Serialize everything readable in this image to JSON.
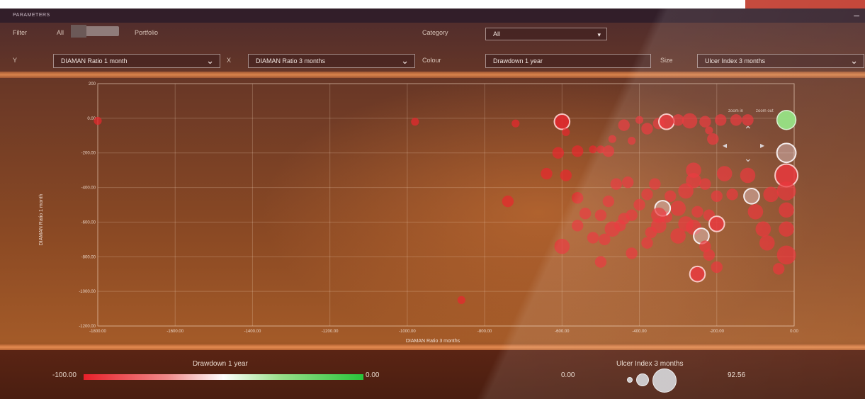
{
  "colors": {
    "accent_red": "#c0392b",
    "bubble_red": "#e8282e",
    "bubble_green": "#8ee07a",
    "bubble_white": "#e8dede",
    "grad_low": "#e8202a",
    "grad_high": "#28c43a"
  },
  "panel": {
    "title": "PARAMETERS",
    "minimize_icon": "minimize-icon"
  },
  "filter": {
    "label": "Filter",
    "option_left": "All",
    "option_right": "Portfolio"
  },
  "category": {
    "label": "Category",
    "value": "All"
  },
  "axes_selectors": {
    "y_label": "Y",
    "y_value": "DIAMAN Ratio 1 month",
    "x_label": "X",
    "x_value": "DIAMAN Ratio 3 months",
    "colour_label": "Colour",
    "colour_value": "Drawdown 1 year",
    "size_label": "Size",
    "size_value": "Ulcer Index 3 months"
  },
  "zoom": {
    "zoom_in": "zoom in",
    "zoom_out": "zoom out"
  },
  "legend": {
    "colour_title": "Drawdown 1 year",
    "colour_min": "-100.00",
    "colour_max": "0.00",
    "size_title": "Ulcer Index 3 months",
    "size_min": "0.00",
    "size_max": "92.56"
  },
  "chart_data": {
    "type": "scatter",
    "xlabel": "DIAMAN Ratio 3 months",
    "ylabel": "DIAMAN Ratio 1 month",
    "xlim": [
      -1800,
      0
    ],
    "ylim": [
      -1200,
      200
    ],
    "x_ticks": [
      "-1800.00",
      "-1600.00",
      "-1400.00",
      "-1200.00",
      "-1000.00",
      "-800.00",
      "-600.00",
      "-400.00",
      "-200.00",
      "0.00"
    ],
    "y_ticks": [
      "200",
      "0.00",
      "-200.00",
      "-400.00",
      "-600.00",
      "-800.00",
      "-1000.00",
      "-1200.00"
    ],
    "grid": true,
    "points": [
      {
        "x": -1800,
        "y": -15,
        "size": 1,
        "color": "red"
      },
      {
        "x": -980,
        "y": -20,
        "size": 1,
        "color": "red"
      },
      {
        "x": -860,
        "y": -1050,
        "size": 1,
        "color": "red"
      },
      {
        "x": -720,
        "y": -30,
        "size": 1,
        "color": "red"
      },
      {
        "x": -740,
        "y": -480,
        "size": 2,
        "color": "red"
      },
      {
        "x": -600,
        "y": -20,
        "size": 3,
        "color": "red-ring"
      },
      {
        "x": -590,
        "y": -80,
        "size": 1,
        "color": "red"
      },
      {
        "x": -610,
        "y": -200,
        "size": 2,
        "color": "red"
      },
      {
        "x": -640,
        "y": -320,
        "size": 2,
        "color": "red"
      },
      {
        "x": -560,
        "y": -190,
        "size": 2,
        "color": "red"
      },
      {
        "x": -520,
        "y": -180,
        "size": 1,
        "color": "red"
      },
      {
        "x": -600,
        "y": -740,
        "size": 3,
        "color": "red"
      },
      {
        "x": -590,
        "y": -330,
        "size": 2,
        "color": "red"
      },
      {
        "x": -500,
        "y": -180,
        "size": 1,
        "color": "red"
      },
      {
        "x": -470,
        "y": -120,
        "size": 1,
        "color": "red"
      },
      {
        "x": -480,
        "y": -190,
        "size": 2,
        "color": "red"
      },
      {
        "x": -440,
        "y": -40,
        "size": 2,
        "color": "red"
      },
      {
        "x": -420,
        "y": -130,
        "size": 1,
        "color": "red"
      },
      {
        "x": -400,
        "y": -10,
        "size": 1,
        "color": "red"
      },
      {
        "x": -380,
        "y": -60,
        "size": 2,
        "color": "red"
      },
      {
        "x": -350,
        "y": -30,
        "size": 2,
        "color": "red"
      },
      {
        "x": -330,
        "y": -20,
        "size": 3,
        "color": "red-ring"
      },
      {
        "x": -300,
        "y": -10,
        "size": 2,
        "color": "red"
      },
      {
        "x": -270,
        "y": -15,
        "size": 3,
        "color": "red"
      },
      {
        "x": -230,
        "y": -20,
        "size": 2,
        "color": "red"
      },
      {
        "x": -210,
        "y": -120,
        "size": 2,
        "color": "red"
      },
      {
        "x": -220,
        "y": -70,
        "size": 1,
        "color": "red"
      },
      {
        "x": -190,
        "y": -10,
        "size": 2,
        "color": "red"
      },
      {
        "x": -150,
        "y": -10,
        "size": 2,
        "color": "red"
      },
      {
        "x": -120,
        "y": -10,
        "size": 2,
        "color": "red"
      },
      {
        "x": -20,
        "y": -10,
        "size": 4,
        "color": "green"
      },
      {
        "x": -20,
        "y": -200,
        "size": 4,
        "color": "white-ring"
      },
      {
        "x": -20,
        "y": -330,
        "size": 5,
        "color": "red-ring"
      },
      {
        "x": -20,
        "y": -420,
        "size": 4,
        "color": "red"
      },
      {
        "x": -20,
        "y": -530,
        "size": 3,
        "color": "red"
      },
      {
        "x": -20,
        "y": -640,
        "size": 3,
        "color": "red"
      },
      {
        "x": -20,
        "y": -790,
        "size": 4,
        "color": "red"
      },
      {
        "x": -40,
        "y": -870,
        "size": 2,
        "color": "red"
      },
      {
        "x": -60,
        "y": -440,
        "size": 3,
        "color": "red"
      },
      {
        "x": -120,
        "y": -330,
        "size": 3,
        "color": "red"
      },
      {
        "x": -110,
        "y": -450,
        "size": 3,
        "color": "white-ring"
      },
      {
        "x": -100,
        "y": -540,
        "size": 3,
        "color": "red"
      },
      {
        "x": -80,
        "y": -640,
        "size": 3,
        "color": "red"
      },
      {
        "x": -70,
        "y": -720,
        "size": 3,
        "color": "red"
      },
      {
        "x": -180,
        "y": -320,
        "size": 3,
        "color": "red"
      },
      {
        "x": -200,
        "y": -450,
        "size": 2,
        "color": "red"
      },
      {
        "x": -230,
        "y": -380,
        "size": 2,
        "color": "red"
      },
      {
        "x": -260,
        "y": -300,
        "size": 3,
        "color": "red"
      },
      {
        "x": -260,
        "y": -360,
        "size": 3,
        "color": "red"
      },
      {
        "x": -280,
        "y": -420,
        "size": 3,
        "color": "red"
      },
      {
        "x": -300,
        "y": -520,
        "size": 3,
        "color": "red"
      },
      {
        "x": -320,
        "y": -450,
        "size": 2,
        "color": "red"
      },
      {
        "x": -330,
        "y": -570,
        "size": 2,
        "color": "red"
      },
      {
        "x": -350,
        "y": -620,
        "size": 3,
        "color": "red"
      },
      {
        "x": -370,
        "y": -660,
        "size": 2,
        "color": "red"
      },
      {
        "x": -300,
        "y": -680,
        "size": 3,
        "color": "red"
      },
      {
        "x": -280,
        "y": -610,
        "size": 3,
        "color": "red"
      },
      {
        "x": -260,
        "y": -630,
        "size": 3,
        "color": "red"
      },
      {
        "x": -240,
        "y": -680,
        "size": 3,
        "color": "white-ring"
      },
      {
        "x": -220,
        "y": -560,
        "size": 2,
        "color": "red"
      },
      {
        "x": -200,
        "y": -610,
        "size": 3,
        "color": "red-ring"
      },
      {
        "x": -250,
        "y": -540,
        "size": 2,
        "color": "red"
      },
      {
        "x": -230,
        "y": -740,
        "size": 2,
        "color": "red"
      },
      {
        "x": -220,
        "y": -790,
        "size": 2,
        "color": "red"
      },
      {
        "x": -250,
        "y": -900,
        "size": 3,
        "color": "red-ring"
      },
      {
        "x": -380,
        "y": -440,
        "size": 2,
        "color": "red"
      },
      {
        "x": -400,
        "y": -500,
        "size": 2,
        "color": "red"
      },
      {
        "x": -420,
        "y": -560,
        "size": 2,
        "color": "red"
      },
      {
        "x": -440,
        "y": -580,
        "size": 2,
        "color": "red"
      },
      {
        "x": -450,
        "y": -620,
        "size": 2,
        "color": "red"
      },
      {
        "x": -470,
        "y": -640,
        "size": 3,
        "color": "red"
      },
      {
        "x": -490,
        "y": -700,
        "size": 2,
        "color": "red"
      },
      {
        "x": -520,
        "y": -690,
        "size": 2,
        "color": "red"
      },
      {
        "x": -540,
        "y": -550,
        "size": 2,
        "color": "red"
      },
      {
        "x": -560,
        "y": -620,
        "size": 2,
        "color": "red"
      },
      {
        "x": -560,
        "y": -460,
        "size": 2,
        "color": "red"
      },
      {
        "x": -500,
        "y": -560,
        "size": 2,
        "color": "red"
      },
      {
        "x": -480,
        "y": -480,
        "size": 2,
        "color": "red"
      },
      {
        "x": -430,
        "y": -370,
        "size": 2,
        "color": "red"
      },
      {
        "x": -460,
        "y": -380,
        "size": 2,
        "color": "red"
      },
      {
        "x": -360,
        "y": -380,
        "size": 2,
        "color": "red"
      },
      {
        "x": -340,
        "y": -520,
        "size": 3,
        "color": "white-ring"
      },
      {
        "x": -350,
        "y": -560,
        "size": 3,
        "color": "red"
      },
      {
        "x": -420,
        "y": -780,
        "size": 2,
        "color": "red"
      },
      {
        "x": -500,
        "y": -830,
        "size": 2,
        "color": "red"
      },
      {
        "x": -380,
        "y": -720,
        "size": 2,
        "color": "red"
      },
      {
        "x": -200,
        "y": -860,
        "size": 2,
        "color": "red"
      },
      {
        "x": -160,
        "y": -440,
        "size": 2,
        "color": "red"
      }
    ]
  }
}
